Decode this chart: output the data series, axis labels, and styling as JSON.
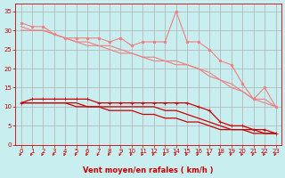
{
  "xlabel": "Vent moyen/en rafales ( km/h )",
  "bg_color": "#c8eef0",
  "grid_color": "#b0b0b0",
  "x": [
    0,
    1,
    2,
    3,
    4,
    5,
    6,
    7,
    8,
    9,
    10,
    11,
    12,
    13,
    14,
    15,
    16,
    17,
    18,
    19,
    20,
    21,
    22,
    23
  ],
  "ylim": [
    0,
    37
  ],
  "xlim": [
    -0.5,
    23.5
  ],
  "yticks": [
    0,
    5,
    10,
    15,
    20,
    25,
    30,
    35
  ],
  "lines": [
    {
      "y": [
        32,
        31,
        31,
        29,
        28,
        28,
        28,
        28,
        27,
        28,
        26,
        27,
        27,
        27,
        35,
        27,
        27,
        25,
        22,
        21,
        16,
        12,
        15,
        10
      ],
      "color": "#f08080",
      "lw": 0.8,
      "marker": "o",
      "ms": 2.0,
      "zorder": 3
    },
    {
      "y": [
        30,
        30,
        30,
        29,
        28,
        27,
        27,
        26,
        26,
        25,
        24,
        23,
        23,
        22,
        22,
        21,
        20,
        19,
        17,
        16,
        14,
        12,
        12,
        10
      ],
      "color": "#f08080",
      "lw": 0.8,
      "marker": null,
      "ms": 0,
      "zorder": 2
    },
    {
      "y": [
        31,
        30,
        30,
        29,
        28,
        27,
        26,
        26,
        25,
        24,
        24,
        23,
        22,
        22,
        21,
        21,
        20,
        18,
        17,
        15,
        14,
        12,
        11,
        10
      ],
      "color": "#f08080",
      "lw": 0.8,
      "marker": null,
      "ms": 0,
      "zorder": 2
    },
    {
      "y": [
        11,
        12,
        12,
        12,
        12,
        12,
        12,
        11,
        11,
        11,
        11,
        11,
        11,
        11,
        11,
        11,
        10,
        9,
        6,
        5,
        5,
        4,
        4,
        3
      ],
      "color": "#cc0000",
      "lw": 0.9,
      "marker": "+",
      "ms": 3.0,
      "zorder": 5
    },
    {
      "y": [
        11,
        11,
        11,
        11,
        11,
        11,
        10,
        10,
        10,
        10,
        10,
        10,
        10,
        9,
        9,
        8,
        7,
        6,
        5,
        4,
        4,
        4,
        3,
        3
      ],
      "color": "#cc0000",
      "lw": 0.9,
      "marker": null,
      "ms": 0,
      "zorder": 4
    },
    {
      "y": [
        11,
        11,
        11,
        11,
        11,
        10,
        10,
        10,
        9,
        9,
        9,
        8,
        8,
        7,
        7,
        6,
        6,
        5,
        4,
        4,
        4,
        3,
        3,
        3
      ],
      "color": "#cc0000",
      "lw": 0.9,
      "marker": null,
      "ms": 0,
      "zorder": 4
    }
  ],
  "arrow_color": "#cc0000"
}
